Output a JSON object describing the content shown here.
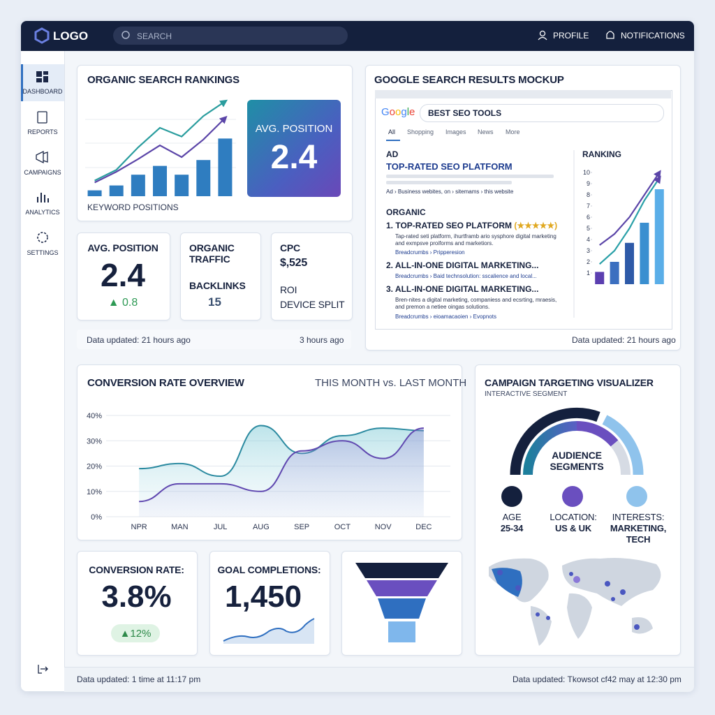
{
  "header": {
    "logo": "LOGO",
    "search": "SEARCH",
    "profile": "PROFILE",
    "notifications": "NOTIFICATIONS"
  },
  "sidebar": {
    "items": [
      "DASHBOARD",
      "REPORTS",
      "CAMPAIGNS",
      "ANALYTICS",
      "SETTINGS"
    ]
  },
  "rankings": {
    "avg_label": "AVG. POSITION",
    "avg_value": "2.4"
  },
  "kpis": {
    "avg_label": "AVG. POSITION",
    "avg_value": "2.4",
    "avg_change": "▲ 0.8",
    "traffic_label": "ORGANIC TRAFFIC",
    "backlinks_label": "BACKLINKS",
    "backlinks_value": "15",
    "cpc_label": "CPC",
    "cpc_value": "$,525",
    "roi_label": "ROI",
    "device_label": "DEVICE SPLIT",
    "updated": "Data updated: 21 hours ago",
    "updated_right": "3 hours ago"
  },
  "serp": {
    "title": "GOOGLE SEARCH RESULTS MOCKUP",
    "logo": [
      "G",
      "o",
      "o",
      "g",
      "l",
      "e"
    ],
    "query": "BEST SEO TOOLS",
    "tabs": [
      "All",
      "Shopping",
      "Images",
      "News",
      "More"
    ],
    "ad_label": "AD",
    "ad_title": "TOP-RATED SEO PLATFORM",
    "ad_url": "Ad › Business webites, on › sitemams › this website",
    "organic_label": "ORGANIC",
    "results": [
      {
        "title": "1. TOP-RATED SEO PLATFORM",
        "rating": "(★★★★★)",
        "snippet": "Tap-rated seti platform, ihurtframb ario sysphore digital marketing and exmpsve proiforms and marketiors.",
        "breadcrumb": "Breadcrumbs › Pripperesion"
      },
      {
        "title": "2. ALL-IN-ONE DIGITAL MARKETING...",
        "breadcrumb": "Breadcrumbs › Baid technsolution: sscalience and local..."
      },
      {
        "title": "3. ALL-IN-ONE DIGITAL MARKETING...",
        "snippet": "Bren-nites a digital marketing, companiess and ecsrting, mraesis, and premon a netiee oingas solutions.",
        "breadcrumb": "Breadcrumbs › eioamacaoien › Evopnots"
      }
    ],
    "updated": "Data updated: 21 hours ago"
  },
  "campaign": {
    "title": "CAMPAIGN TARGETING VISUALIZER",
    "subtitle": "INTERACTIVE SEGMENT",
    "center": "AUDIENCE SEGMENTS",
    "segments": [
      {
        "label": "AGE",
        "value": "25-34"
      },
      {
        "label": "LOCATION:",
        "value": "US & UK"
      },
      {
        "label": "INTERESTS:",
        "value": "MARKETING, TECH"
      }
    ]
  },
  "metrics": {
    "conversion_label": "CONVERSION RATE:",
    "conversion_value": "3.8%",
    "conversion_change": "▲12%",
    "goals_label": "GOAL COMPLETIONS:",
    "goals_value": "1,450"
  },
  "footer": {
    "left": "Data updated: 1 time at 11:17 pm",
    "right": "Data updated: Tkowsot cf42 may at 12:30 pm"
  },
  "chart_data": [
    {
      "type": "bar-line",
      "title": "ORGANIC SEARCH RANKINGS",
      "x_label": "KEYWORD POSITIONS",
      "ylim": [
        0,
        100
      ],
      "values": [
        6,
        11,
        22,
        31,
        22,
        37,
        59
      ],
      "color": "#2f7dc0",
      "series": [
        {
          "color": "#2a9d9e",
          "values": [
            16,
            27,
            50,
            70,
            61,
            82,
            97
          ]
        },
        {
          "color": "#5b45a8",
          "values": [
            14,
            25,
            38,
            52,
            40,
            58,
            80
          ]
        }
      ]
    },
    {
      "type": "bar-line",
      "title": "RANKING",
      "ylim": [
        0,
        10
      ],
      "yticks": [
        10,
        9,
        8,
        7,
        6,
        5,
        4,
        3,
        2,
        1
      ],
      "values": [
        1.1,
        2,
        3.7,
        5.5,
        8.5
      ],
      "colors": [
        "#5b3fb0",
        "#3b6fc0",
        "#2e5aa8",
        "#3a8fd0",
        "#5aaee8"
      ],
      "series": [
        {
          "color": "#5b45a8",
          "values": [
            3.5,
            4.5,
            6,
            8,
            10
          ]
        },
        {
          "color": "#2aa0a8",
          "values": [
            1.8,
            3,
            5,
            7.5,
            9.5
          ]
        }
      ]
    },
    {
      "type": "line",
      "title": "CONVERSION RATE OVERVIEW",
      "subtitle": "THIS MONTH vs. LAST MONTH",
      "categories": [
        "NPR",
        "MAN",
        "JUL",
        "AUG",
        "SEP",
        "OCT",
        "NOV",
        "DEC"
      ],
      "ylim": [
        0,
        40
      ],
      "grid": true,
      "yticks": [
        {
          "value": 0,
          "label": "0%"
        },
        {
          "value": 10,
          "label": "10%"
        },
        {
          "value": 20,
          "label": "20%"
        },
        {
          "value": 30,
          "label": "30%"
        },
        {
          "value": 40,
          "label": "40%"
        }
      ],
      "series": [
        {
          "color": "#2b8aa0",
          "values": [
            19,
            21,
            16,
            36,
            25,
            32,
            35,
            34
          ]
        },
        {
          "color": "#6048b0",
          "values": [
            6,
            13,
            13,
            10,
            26,
            30,
            23,
            35
          ]
        }
      ]
    }
  ]
}
